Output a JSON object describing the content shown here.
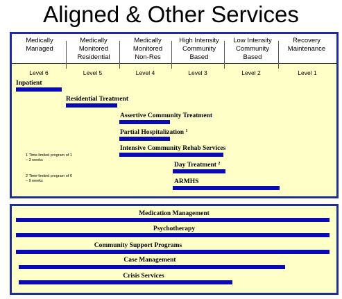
{
  "title": "Aligned & Other Services",
  "columns": [
    {
      "header": "Medically\nManaged",
      "level": "Level 6"
    },
    {
      "header": "Medically\nMonitored\nResidential",
      "level": "Level 5"
    },
    {
      "header": "Medically\nMonitored\nNon-Res",
      "level": "Level 4"
    },
    {
      "header": "High Intensity\nCommunity\nBased",
      "level": "Level 3"
    },
    {
      "header": "Low Intensity\nCommunity\nBased",
      "level": "Level 2"
    },
    {
      "header": "Recovery\nMaintenance",
      "level": "Level 1"
    }
  ],
  "aligned_services": [
    {
      "label": "Inpatient",
      "sup": ""
    },
    {
      "label": "Residential Treatment",
      "sup": ""
    },
    {
      "label": "Assertive Community Treatment",
      "sup": ""
    },
    {
      "label": "Partial Hospitalization",
      "sup": "1"
    },
    {
      "label": "Intensive Community Rehab Services",
      "sup": ""
    },
    {
      "label": "Day Treatment",
      "sup": "2"
    },
    {
      "label": "ARMHS",
      "sup": ""
    }
  ],
  "notes": [
    "1 Time-limited program of 1 – 3 weeks",
    "2 Time-limited program of 6 – 9 weeks"
  ],
  "other_services": [
    "Medication Management",
    "Psychotherapy",
    "Community Support Programs",
    "Case Management",
    "Crisis Services"
  ],
  "colors": {
    "bar": "#0a0ab4",
    "panel_border": "#1f2d99",
    "panel_fill": "#ffffc8"
  }
}
